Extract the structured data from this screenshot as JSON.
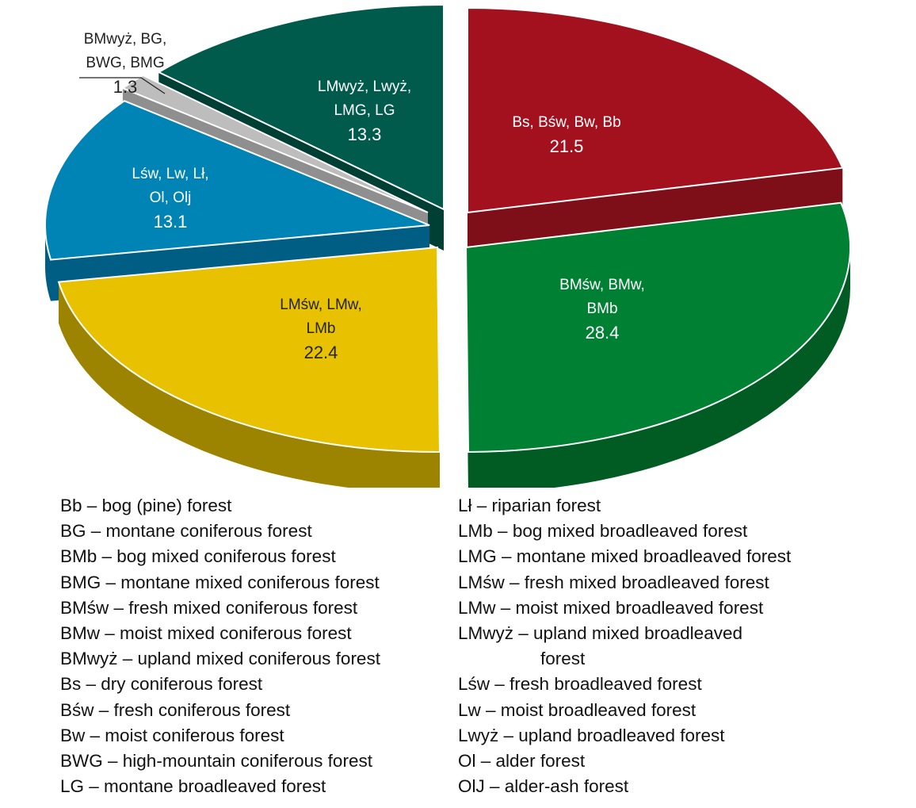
{
  "chart_data": {
    "type": "pie",
    "title": "",
    "slices": [
      {
        "label_lines": [
          "Bs, Bśw, Bw, Bb"
        ],
        "value": 21.5,
        "value_text": "21.5",
        "color": "#A3111E",
        "side_color": "#7E0F19",
        "label_color": "#ffffff"
      },
      {
        "label_lines": [
          "BMśw, BMw,",
          "BMb"
        ],
        "value": 28.4,
        "value_text": "28.4",
        "color": "#008033",
        "side_color": "#005C23",
        "label_color": "#ffffff"
      },
      {
        "label_lines": [
          "LMśw, LMw,",
          "LMb"
        ],
        "value": 22.4,
        "value_text": "22.4",
        "color": "#E8C200",
        "side_color": "#9C8300",
        "label_color": "#222222"
      },
      {
        "label_lines": [
          "Lśw, Lw, Lł,",
          "Ol, Olj"
        ],
        "value": 13.1,
        "value_text": "13.1",
        "color": "#0083B5",
        "side_color": "#005E85",
        "label_color": "#ffffff"
      },
      {
        "label_lines": [
          "BMwyż, BG,",
          "BWG, BMG"
        ],
        "value": 1.3,
        "value_text": "1.3",
        "color": "#BDBDBD",
        "side_color": "#8F8F8F",
        "label_color": "#222222"
      },
      {
        "label_lines": [
          "LMwyż, Lwyż,",
          "LMG, LG"
        ],
        "value": 13.3,
        "value_text": "13.3",
        "color": "#005B4C",
        "side_color": "#003F34",
        "label_color": "#ffffff"
      }
    ]
  },
  "legend": {
    "left": [
      {
        "abbr": "Bb –",
        "desc": "bog (pine) forest"
      },
      {
        "abbr": "BG –",
        "desc": "montane coniferous forest"
      },
      {
        "abbr": "BMb –",
        "desc": "bog mixed coniferous forest"
      },
      {
        "abbr": "BMG –",
        "desc": "montane mixed coniferous forest"
      },
      {
        "abbr": "BMśw –",
        "desc": "fresh mixed coniferous forest"
      },
      {
        "abbr": "BMw –",
        "desc": "moist mixed coniferous forest"
      },
      {
        "abbr": "BMwyż –",
        "desc": "upland mixed coniferous forest"
      },
      {
        "abbr": "Bs –",
        "desc": "dry coniferous forest"
      },
      {
        "abbr": "Bśw –",
        "desc": "fresh coniferous forest"
      },
      {
        "abbr": "Bw –",
        "desc": "moist coniferous forest"
      },
      {
        "abbr": "BWG –",
        "desc": "high-mountain coniferous forest"
      },
      {
        "abbr": "LG –",
        "desc": "montane broadleaved forest"
      }
    ],
    "right": [
      {
        "abbr": "Lł –",
        "desc": "riparian forest"
      },
      {
        "abbr": "LMb –",
        "desc": "bog mixed broadleaved forest"
      },
      {
        "abbr": "LMG –",
        "desc": "montane mixed broadleaved forest"
      },
      {
        "abbr": "LMśw –",
        "desc": "fresh mixed broadleaved forest"
      },
      {
        "abbr": "LMw –",
        "desc": "moist mixed broadleaved forest"
      },
      {
        "abbr": "LMwyż –",
        "desc": "upland mixed broadleaved",
        "desc2": "forest"
      },
      {
        "abbr": "Lśw –",
        "desc": "fresh broadleaved forest"
      },
      {
        "abbr": "Lw –",
        "desc": "moist broadleaved forest"
      },
      {
        "abbr": "Lwyż –",
        "desc": "upland broadleaved forest"
      },
      {
        "abbr": "Ol –",
        "desc": "alder forest"
      },
      {
        "abbr": "OlJ –",
        "desc": "alder-ash forest"
      }
    ]
  }
}
